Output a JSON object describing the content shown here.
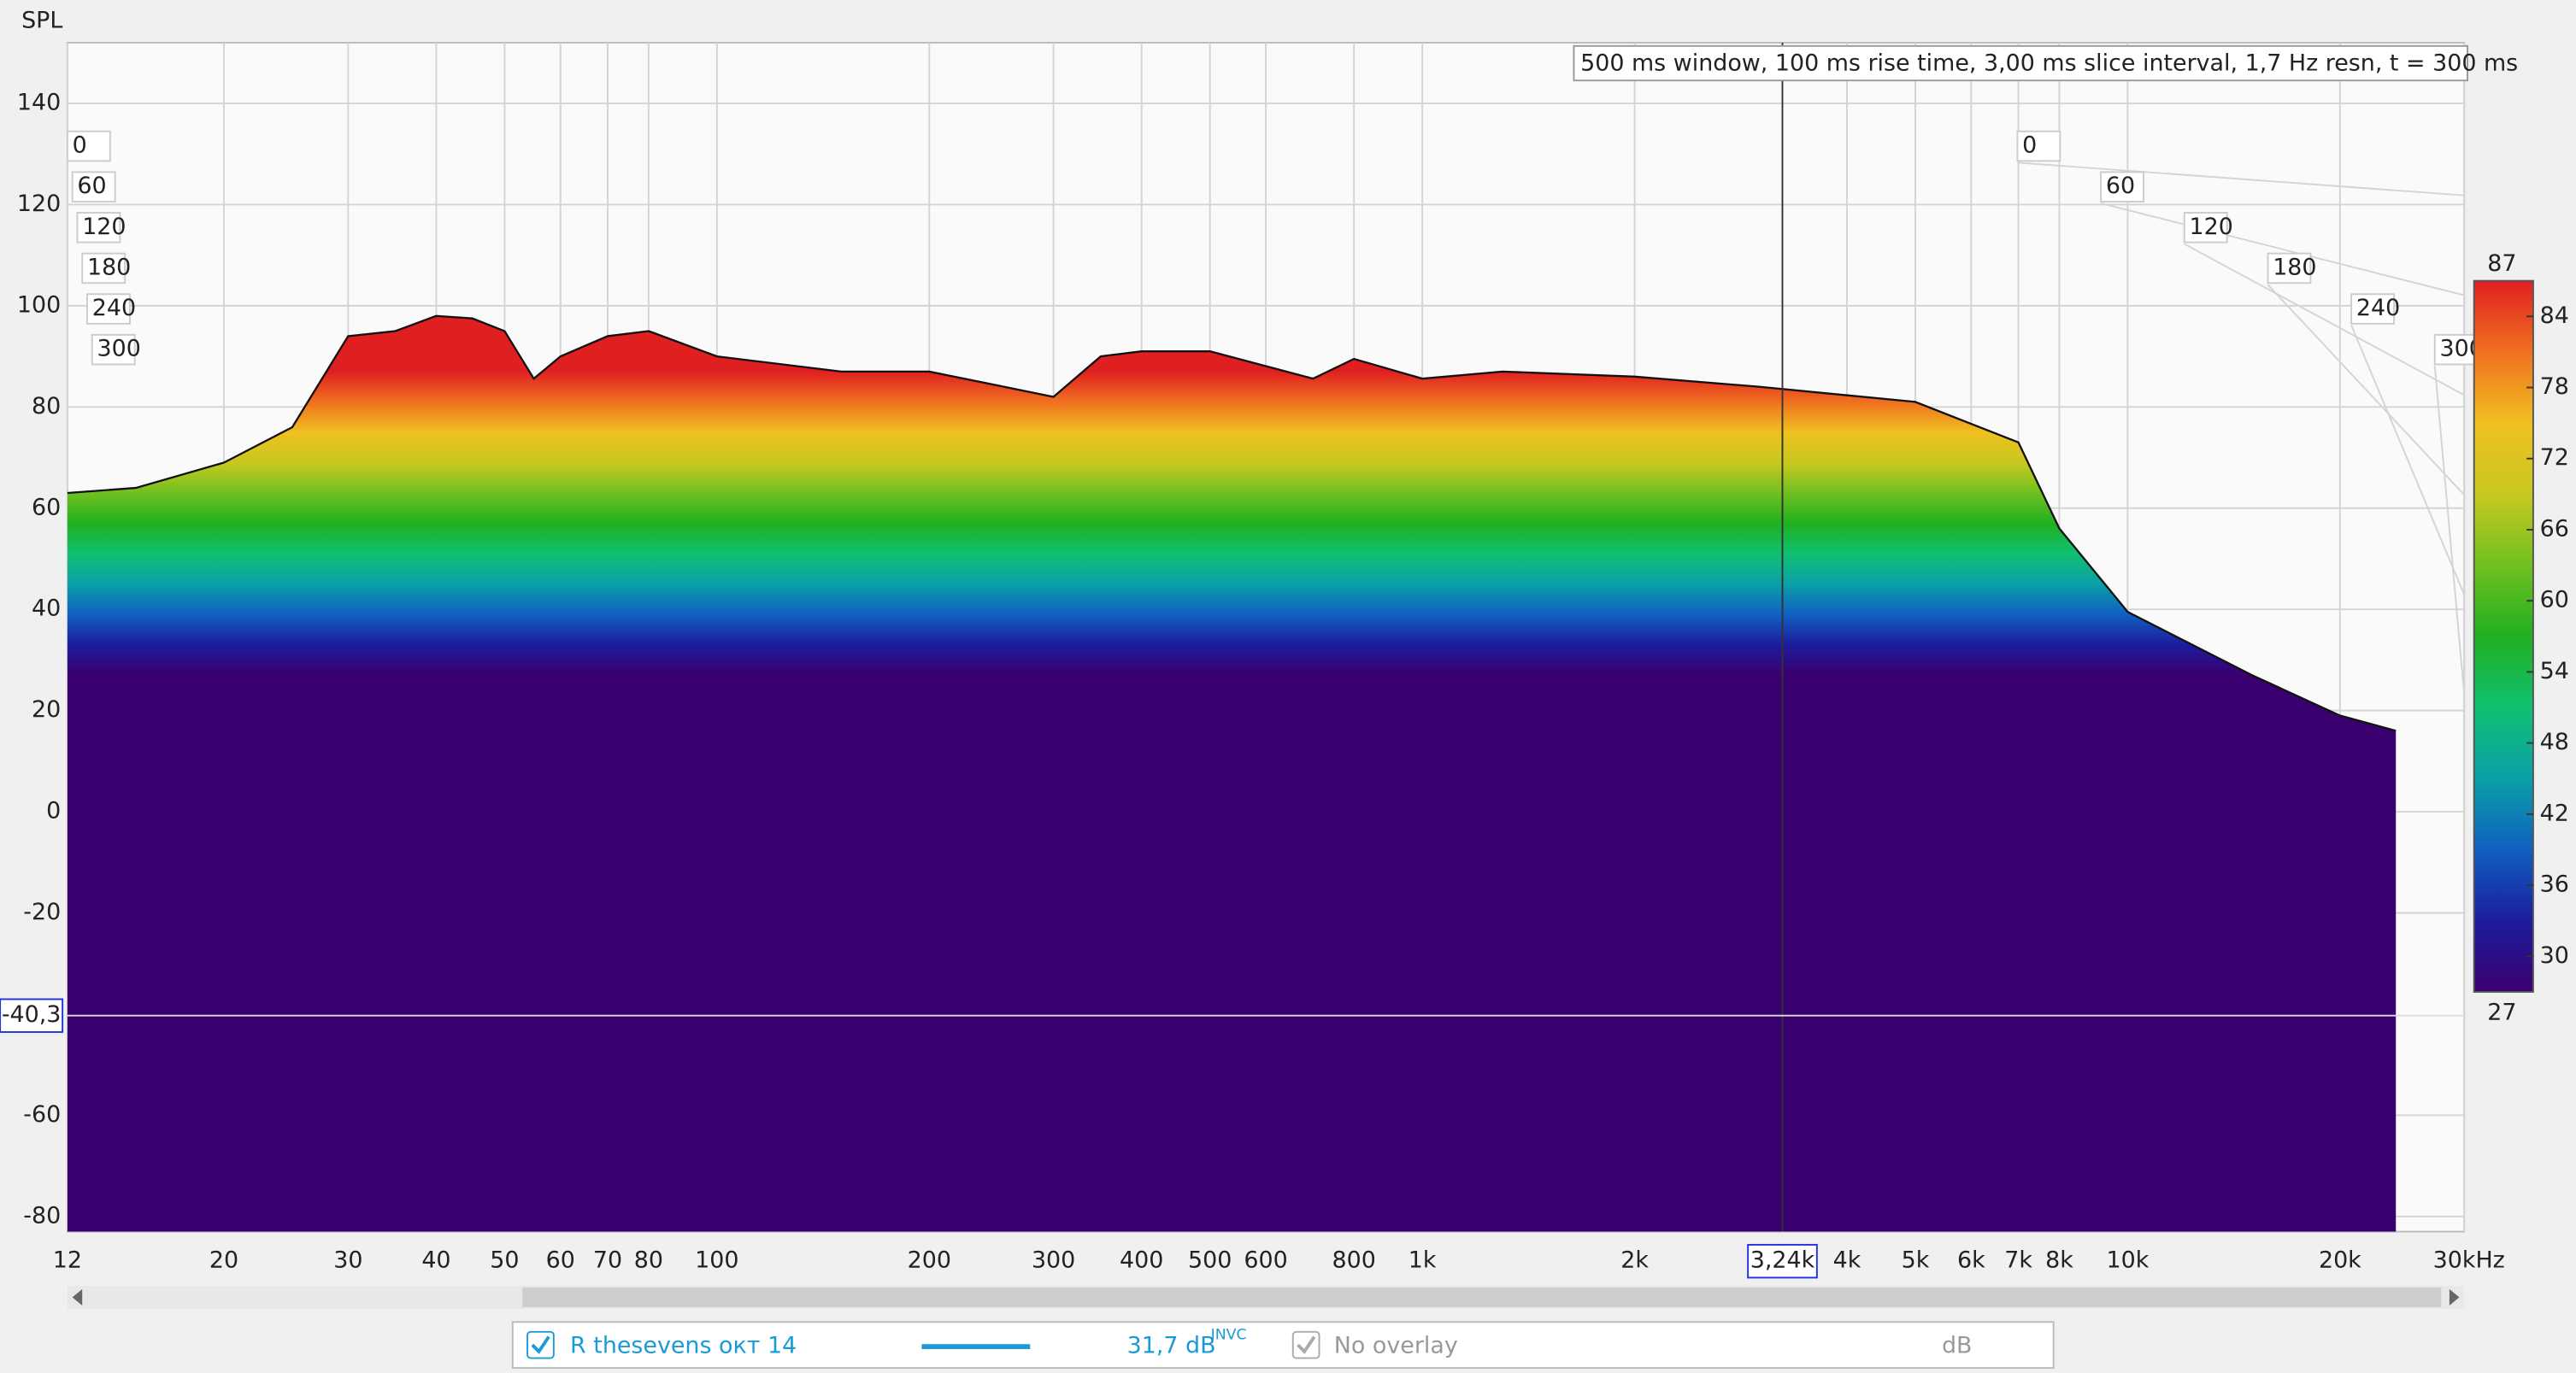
{
  "chart_data": {
    "type": "waterfall",
    "y_label": "SPL",
    "info": "500 ms window, 100 ms rise time, 3,00 ms slice interval, 1,7 Hz resn, t = 300 ms",
    "log_x": true,
    "grid": true,
    "xlim": [
      12,
      30000
    ],
    "ylim": [
      -83,
      152
    ],
    "xticks": [
      12,
      20,
      30,
      40,
      50,
      60,
      70,
      80,
      100,
      200,
      300,
      400,
      500,
      600,
      800,
      {
        "value": 1000,
        "label": "1k"
      },
      {
        "value": 2000,
        "label": "2k"
      },
      {
        "value": 4000,
        "label": "4k"
      },
      {
        "value": 5000,
        "label": "5k"
      },
      {
        "value": 6000,
        "label": "6k"
      },
      {
        "value": 7000,
        "label": "7k"
      },
      {
        "value": 8000,
        "label": "8k"
      },
      {
        "value": 10000,
        "label": "10k"
      },
      {
        "value": 20000,
        "label": "20k"
      },
      {
        "value": 30000,
        "label": "30kHz"
      }
    ],
    "yticks": [
      140,
      120,
      100,
      80,
      60,
      40,
      20,
      0,
      -20,
      -60,
      -80
    ],
    "zticks": [
      0,
      60,
      120,
      180,
      240,
      300
    ],
    "cursor": {
      "x": {
        "value": 3240,
        "label": "3,24k"
      },
      "y": {
        "value": -40.3,
        "label": "-40,3"
      }
    },
    "x": [
      12,
      15,
      20,
      25,
      30,
      35,
      40,
      45,
      50,
      55,
      60,
      70,
      80,
      100,
      150,
      200,
      300,
      350,
      400,
      500,
      700,
      800,
      1000,
      1300,
      2000,
      3000,
      5000,
      7000,
      8000,
      10000,
      15000,
      20000,
      24000
    ],
    "values": [
      63,
      64,
      69,
      76,
      94,
      95,
      98,
      97.5,
      95,
      85.6,
      90,
      94,
      95,
      90,
      87,
      87,
      82,
      90,
      91,
      91,
      85.6,
      89.5,
      85.6,
      87,
      86,
      84,
      81,
      73,
      56,
      39.5,
      27,
      19,
      16
    ],
    "colorbar": {
      "lim": [
        27,
        87
      ],
      "ticks": [
        27,
        30,
        36,
        42,
        48,
        54,
        60,
        66,
        72,
        78,
        84,
        87
      ],
      "colors": [
        "#3a0070",
        "#1c1c9c",
        "#1060c0",
        "#0aa0a8",
        "#10c070",
        "#20b020",
        "#70c020",
        "#c8c820",
        "#f0c020",
        "#f07020",
        "#e02020"
      ]
    },
    "legend": {
      "name": "R thesevens окт 14",
      "color": "#1a9bd7",
      "value": "31,7 dB",
      "sup": "INVC",
      "overlay": "No overlay",
      "unit": "dB"
    }
  }
}
